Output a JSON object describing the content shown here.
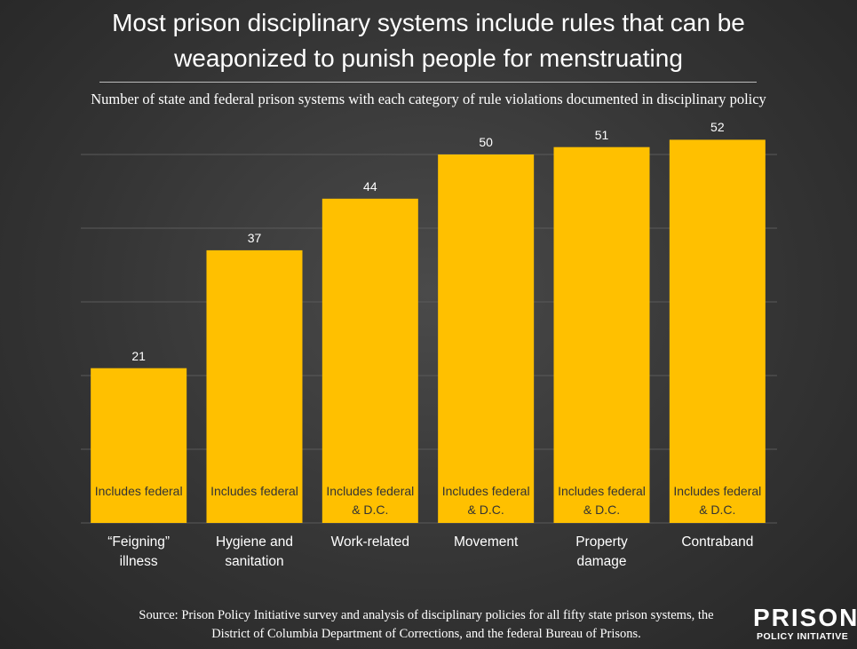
{
  "chart_data": {
    "type": "bar",
    "title": "Most prison disciplinary systems include rules that can be weaponized to punish people for menstruating",
    "subtitle": "Number of state and federal prison systems with each category of rule violations documented in disciplinary policy",
    "categories": [
      "“Feigning” illness",
      "Hygiene and sanitation",
      "Work-related",
      "Movement",
      "Property damage",
      "Contraband"
    ],
    "values": [
      21,
      37,
      44,
      50,
      51,
      52
    ],
    "bar_notes": [
      "Includes federal",
      "Includes federal",
      "Includes federal & D.C.",
      "Includes federal & D.C.",
      "Includes federal & D.C.",
      "Includes federal & D.C."
    ],
    "color": "#ffc000",
    "ylim": [
      0,
      55
    ],
    "yticks": [
      0,
      10,
      20,
      30,
      40,
      50
    ],
    "grid": true,
    "source": "Source: Prison Policy Initiative survey and analysis of disciplinary policies for all fifty state prison systems, the District of Columbia Department of Corrections, and the federal Bureau of Prisons.",
    "logo": {
      "line1": "PRISON",
      "line2": "POLICY INITIATIVE"
    }
  }
}
